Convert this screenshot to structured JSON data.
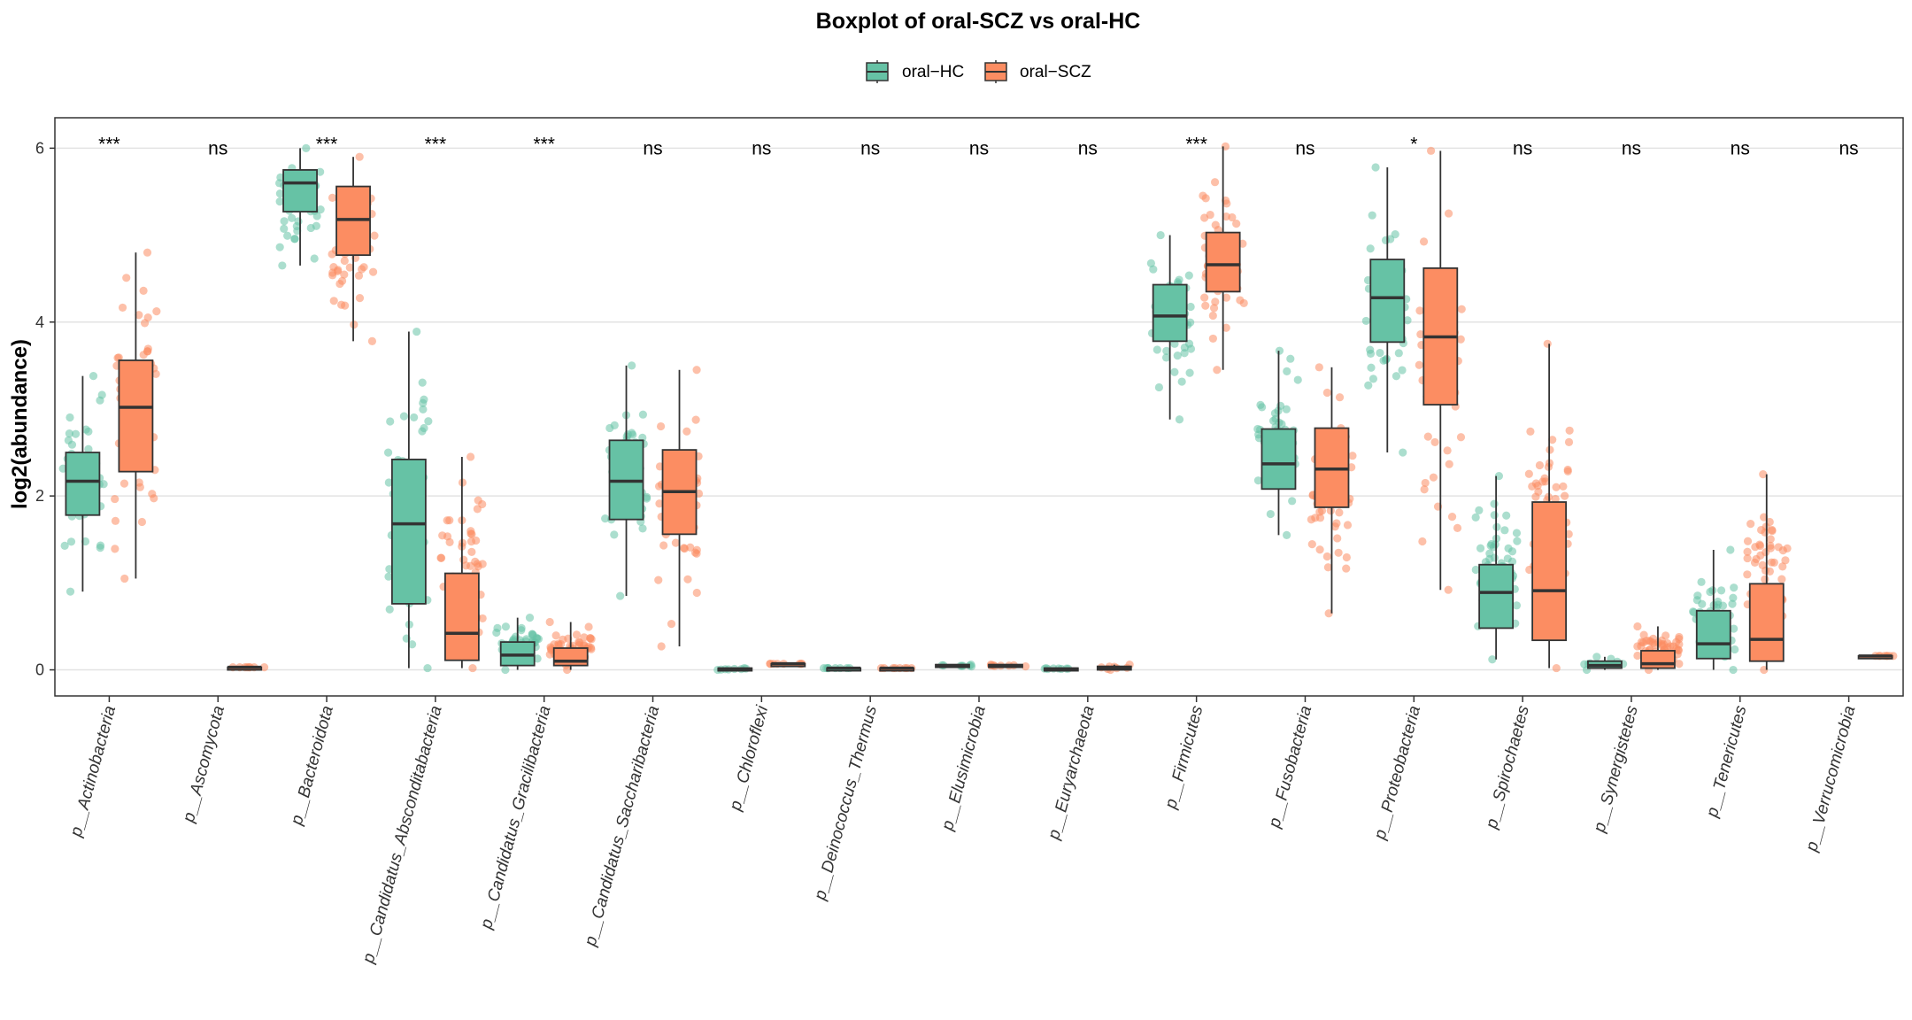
{
  "chart_data": {
    "type": "boxplot",
    "title": "Boxplot of oral-SCZ vs oral-HC",
    "ylabel": "log2(abundance)",
    "xlabel": "",
    "ylim": [
      -0.3,
      6.35
    ],
    "yticks": [
      0,
      2,
      4,
      6
    ],
    "grid": "horizontal",
    "legend_position": "top",
    "series": [
      {
        "name": "oral−HC",
        "color": "#66C2A5"
      },
      {
        "name": "oral−SCZ",
        "color": "#FC8D62"
      }
    ],
    "categories": [
      "p__Actinobacteria",
      "p__Ascomycota",
      "p__Bacteroidota",
      "p__Candidatus_Absconditabacteria",
      "p__Candidatus_Gracilibacteria",
      "p__Candidatus_Saccharibacteria",
      "p__Chloroflexi",
      "p__Deinococcus_Thermus",
      "p__Elusimicrobia",
      "p__Euryarchaeota",
      "p__Firmicutes",
      "p__Fusobacteria",
      "p__Proteobacteria",
      "p__Spirochaetes",
      "p__Synergistetes",
      "p__Tenericutes",
      "p__Verrucomicrobia"
    ],
    "significance": [
      "***",
      "ns",
      "***",
      "***",
      "***",
      "ns",
      "ns",
      "ns",
      "ns",
      "ns",
      "***",
      "ns",
      "*",
      "ns",
      "ns",
      "ns",
      "ns"
    ],
    "boxes": [
      {
        "hc": {
          "min": 0.9,
          "q1": 1.78,
          "median": 2.17,
          "q3": 2.5,
          "max": 3.38
        },
        "scz": {
          "min": 1.05,
          "q1": 2.28,
          "median": 3.02,
          "q3": 3.56,
          "max": 4.8
        }
      },
      {
        "hc": null,
        "scz": {
          "min": 0.03,
          "q1": 0.03,
          "median": 0.03,
          "q3": 0.03,
          "max": 0.03
        }
      },
      {
        "hc": {
          "min": 4.65,
          "q1": 5.27,
          "median": 5.6,
          "q3": 5.75,
          "max": 6.0
        },
        "scz": {
          "min": 3.78,
          "q1": 4.77,
          "median": 5.18,
          "q3": 5.56,
          "max": 5.9
        }
      },
      {
        "hc": {
          "min": 0.02,
          "q1": 0.76,
          "median": 1.68,
          "q3": 2.42,
          "max": 3.89
        },
        "scz": {
          "min": 0.02,
          "q1": 0.11,
          "median": 0.42,
          "q3": 1.11,
          "max": 2.45
        }
      },
      {
        "hc": {
          "min": 0.0,
          "q1": 0.05,
          "median": 0.17,
          "q3": 0.32,
          "max": 0.6
        },
        "scz": {
          "min": 0.0,
          "q1": 0.05,
          "median": 0.1,
          "q3": 0.25,
          "max": 0.55
        }
      },
      {
        "hc": {
          "min": 0.85,
          "q1": 1.73,
          "median": 2.17,
          "q3": 2.64,
          "max": 3.5
        },
        "scz": {
          "min": 0.27,
          "q1": 1.56,
          "median": 2.05,
          "q3": 2.53,
          "max": 3.45
        }
      },
      {
        "hc": {
          "min": 0.0,
          "q1": 0.0,
          "median": 0.01,
          "q3": 0.02,
          "max": 0.02
        },
        "scz": {
          "min": 0.07,
          "q1": 0.07,
          "median": 0.07,
          "q3": 0.07,
          "max": 0.07
        }
      },
      {
        "hc": {
          "min": 0.02,
          "q1": 0.02,
          "median": 0.02,
          "q3": 0.02,
          "max": 0.02
        },
        "scz": {
          "min": 0.02,
          "q1": 0.02,
          "median": 0.02,
          "q3": 0.02,
          "max": 0.02
        }
      },
      {
        "hc": {
          "min": 0.04,
          "q1": 0.04,
          "median": 0.05,
          "q3": 0.06,
          "max": 0.06
        },
        "scz": {
          "min": 0.04,
          "q1": 0.04,
          "median": 0.05,
          "q3": 0.06,
          "max": 0.06
        }
      },
      {
        "hc": {
          "min": 0.01,
          "q1": 0.01,
          "median": 0.01,
          "q3": 0.02,
          "max": 0.02
        },
        "scz": {
          "min": 0.0,
          "q1": 0.0,
          "median": 0.02,
          "q3": 0.04,
          "max": 0.06
        }
      },
      {
        "hc": {
          "min": 2.88,
          "q1": 3.78,
          "median": 4.07,
          "q3": 4.43,
          "max": 5.0
        },
        "scz": {
          "min": 3.45,
          "q1": 4.35,
          "median": 4.66,
          "q3": 5.03,
          "max": 6.02
        }
      },
      {
        "hc": {
          "min": 1.55,
          "q1": 2.08,
          "median": 2.37,
          "q3": 2.77,
          "max": 3.67
        },
        "scz": {
          "min": 0.65,
          "q1": 1.87,
          "median": 2.31,
          "q3": 2.78,
          "max": 3.48
        }
      },
      {
        "hc": {
          "min": 2.5,
          "q1": 3.77,
          "median": 4.28,
          "q3": 4.72,
          "max": 5.78
        },
        "scz": {
          "min": 0.92,
          "q1": 3.05,
          "median": 3.83,
          "q3": 4.62,
          "max": 5.97
        }
      },
      {
        "hc": {
          "min": 0.12,
          "q1": 0.48,
          "median": 0.89,
          "q3": 1.21,
          "max": 2.23
        },
        "scz": {
          "min": 0.02,
          "q1": 0.34,
          "median": 0.91,
          "q3": 1.93,
          "max": 3.75
        }
      },
      {
        "hc": {
          "min": 0.0,
          "q1": 0.02,
          "median": 0.05,
          "q3": 0.1,
          "max": 0.15
        },
        "scz": {
          "min": 0.0,
          "q1": 0.02,
          "median": 0.07,
          "q3": 0.22,
          "max": 0.5
        }
      },
      {
        "hc": {
          "min": 0.0,
          "q1": 0.13,
          "median": 0.3,
          "q3": 0.68,
          "max": 1.38
        },
        "scz": {
          "min": 0.0,
          "q1": 0.1,
          "median": 0.35,
          "q3": 0.99,
          "max": 2.25
        }
      },
      {
        "hc": null,
        "scz": {
          "min": 0.16,
          "q1": 0.16,
          "median": 0.16,
          "q3": 0.16,
          "max": 0.16
        }
      }
    ]
  }
}
